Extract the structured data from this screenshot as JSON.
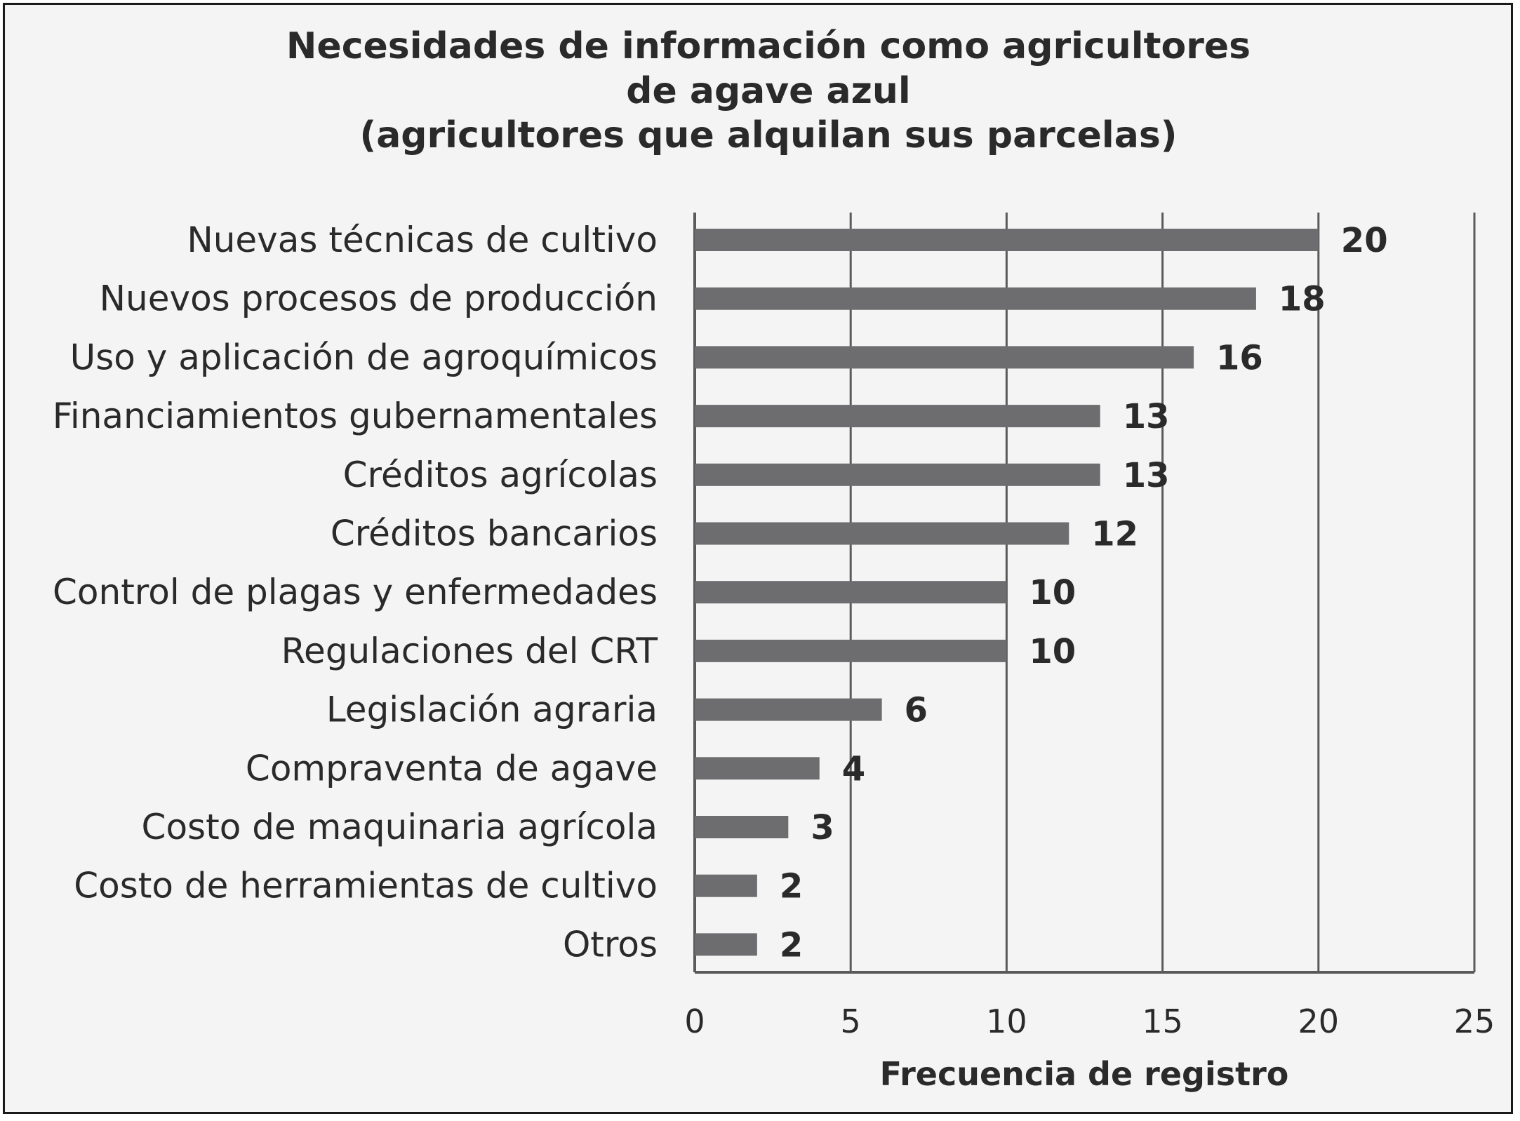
{
  "chart_data": {
    "type": "bar",
    "orientation": "horizontal",
    "title_lines": [
      "Necesidades de información como agricultores",
      "de agave azul",
      "(agricultores que alquilan sus parcelas)"
    ],
    "categories": [
      "Nuevas técnicas de cultivo",
      "Nuevos procesos de producción",
      "Uso y aplicación de agroquímicos",
      "Financiamientos gubernamentales",
      "Créditos agrícolas",
      "Créditos bancarios",
      "Control de plagas y enfermedades",
      "Regulaciones del CRT",
      "Legislación agraria",
      "Compraventa de agave",
      "Costo de maquinaria agrícola",
      "Costo de herramientas de cultivo",
      "Otros"
    ],
    "values": [
      20,
      18,
      16,
      13,
      13,
      12,
      10,
      10,
      6,
      4,
      3,
      2,
      2
    ],
    "value_labels": [
      "20",
      "18",
      "16",
      "13",
      "13",
      "12",
      "10",
      "10",
      "6",
      "4",
      "3",
      "2",
      "2"
    ],
    "xlabel": "Frecuencia de registro",
    "xlim": [
      0,
      25
    ],
    "xticks": [
      0,
      5,
      10,
      15,
      20,
      25
    ],
    "xtick_labels": [
      "0",
      "5",
      "10",
      "15",
      "20",
      "25"
    ],
    "grid": "vertical",
    "legend": "none",
    "colors": {
      "bar": "#6d6d6f",
      "grid": "#5a5a5a",
      "background": "#f4f4f4",
      "text": "#2a2a2a"
    }
  }
}
